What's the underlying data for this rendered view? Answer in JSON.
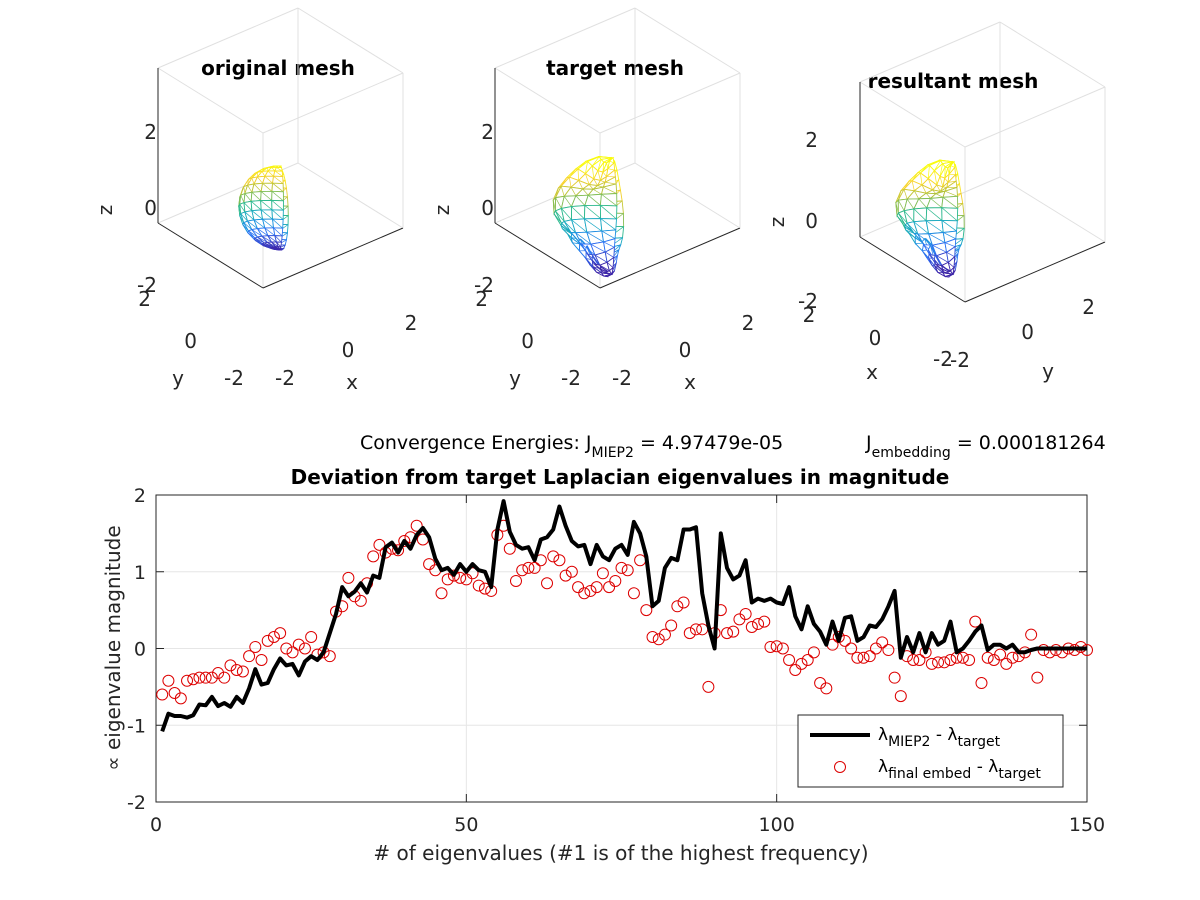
{
  "meshes": [
    {
      "id": "original",
      "title": "original mesh",
      "z_ticks": [
        "2",
        "0",
        "-2"
      ],
      "y_ticks": [
        "2",
        "0",
        "-2"
      ],
      "x_ticks": [
        "-2",
        "0",
        "2"
      ],
      "xlabel": "x",
      "ylabel": "y",
      "zlabel": "z"
    },
    {
      "id": "target",
      "title": "target mesh",
      "z_ticks": [
        "2",
        "0",
        "-2"
      ],
      "y_ticks": [
        "2",
        "0",
        "-2"
      ],
      "x_ticks": [
        "-2",
        "0",
        "2"
      ],
      "xlabel": "x",
      "ylabel": "y",
      "zlabel": "z"
    },
    {
      "id": "resultant",
      "title": "resultant mesh",
      "z_ticks": [
        "2",
        "0",
        "-2"
      ],
      "y_ticks": [
        "-2",
        "0",
        "2"
      ],
      "x_ticks": [
        "2",
        "0",
        "-2"
      ],
      "xlabel": "x",
      "ylabel": "y",
      "zlabel": "z"
    }
  ],
  "energies": {
    "prefix": "Convergence Energies: J",
    "miep_sub": "MIEP2",
    "miep_value": " = 4.97479e-05",
    "embed_J": "J",
    "embed_sub": "embedding",
    "embed_value": " = 0.000181264"
  },
  "colormap": [
    "#3e26a8",
    "#2f6ff5",
    "#14a3d6",
    "#2db98f",
    "#a8c03c",
    "#f9d22d",
    "#f9fb0e"
  ],
  "chart_data": {
    "type": "line",
    "title": "Deviation from target Laplacian eigenvalues in magnitude",
    "xlabel": "# of eigenvalues (#1 is of the highest frequency)",
    "ylabel": "∝ eigenvalue magnitude",
    "xlim": [
      0,
      150
    ],
    "ylim": [
      -2,
      2
    ],
    "xticks": [
      0,
      50,
      100,
      150
    ],
    "yticks": [
      -2,
      -1,
      0,
      1,
      2
    ],
    "grid": true,
    "legend_position": "bottom-right",
    "series": [
      {
        "name": "λMIEP2 - λtarget",
        "legend_main": "λ",
        "legend_sub1": "MIEP2",
        "legend_mid": " - λ",
        "legend_sub2": "target",
        "style": "line",
        "color": "#000000",
        "values": [
          -1.08,
          -0.85,
          -0.88,
          -0.88,
          -0.9,
          -0.87,
          -0.73,
          -0.74,
          -0.63,
          -0.75,
          -0.71,
          -0.76,
          -0.63,
          -0.71,
          -0.52,
          -0.27,
          -0.47,
          -0.45,
          -0.27,
          -0.13,
          -0.22,
          -0.2,
          -0.35,
          -0.17,
          -0.1,
          -0.15,
          -0.05,
          0.2,
          0.45,
          0.8,
          0.68,
          0.74,
          0.85,
          0.73,
          0.95,
          0.92,
          1.32,
          1.38,
          1.25,
          1.4,
          1.3,
          1.48,
          1.57,
          1.45,
          1.17,
          1.02,
          1.05,
          0.96,
          1.1,
          1.0,
          1.1,
          1.02,
          1.0,
          0.8,
          1.55,
          1.92,
          1.52,
          1.35,
          1.3,
          1.32,
          1.15,
          1.42,
          1.45,
          1.55,
          1.85,
          1.6,
          1.4,
          1.33,
          1.35,
          1.1,
          1.35,
          1.2,
          1.15,
          1.3,
          1.35,
          1.22,
          1.65,
          1.5,
          1.2,
          0.55,
          0.62,
          1.05,
          1.18,
          1.15,
          1.55,
          1.55,
          1.58,
          0.72,
          0.3,
          0.0,
          1.5,
          1.05,
          0.9,
          0.95,
          1.15,
          0.6,
          0.65,
          0.62,
          0.65,
          0.6,
          0.58,
          0.8,
          0.42,
          0.25,
          0.55,
          0.32,
          0.22,
          0.05,
          0.35,
          0.1,
          0.4,
          0.42,
          0.1,
          0.15,
          0.3,
          0.28,
          0.38,
          0.55,
          0.75,
          -0.12,
          0.15,
          -0.05,
          0.2,
          -0.05,
          0.2,
          0.05,
          0.1,
          0.35,
          -0.05,
          0.0,
          0.1,
          0.22,
          0.3,
          -0.02,
          0.05,
          0.05,
          0.0,
          0.05,
          -0.05,
          -0.05,
          -0.02,
          0.0,
          0.0,
          0.0,
          0.0,
          0.0,
          0.0,
          0.0,
          0.0,
          0.0
        ]
      },
      {
        "name": "λfinal embed - λtarget",
        "legend_main": "λ",
        "legend_sub1": "final embed",
        "legend_mid": " - λ",
        "legend_sub2": "target",
        "style": "markers",
        "color": "#dd0000",
        "values": [
          -0.6,
          -0.42,
          -0.58,
          -0.65,
          -0.42,
          -0.4,
          -0.38,
          -0.38,
          -0.38,
          -0.32,
          -0.38,
          -0.22,
          -0.28,
          -0.3,
          -0.1,
          0.02,
          -0.15,
          0.1,
          0.15,
          0.2,
          0.0,
          -0.05,
          0.05,
          0.0,
          0.15,
          -0.08,
          -0.05,
          -0.1,
          0.48,
          0.55,
          0.92,
          0.68,
          0.62,
          0.85,
          1.2,
          1.35,
          1.25,
          1.3,
          1.28,
          1.4,
          1.45,
          1.6,
          1.42,
          1.1,
          1.02,
          0.72,
          0.9,
          0.95,
          0.92,
          0.9,
          0.98,
          0.82,
          0.78,
          0.75,
          1.48,
          1.6,
          1.3,
          0.88,
          1.02,
          1.05,
          1.05,
          1.15,
          0.85,
          1.2,
          1.15,
          0.95,
          1.0,
          0.8,
          0.72,
          0.75,
          0.8,
          0.98,
          0.8,
          0.88,
          1.05,
          1.02,
          0.72,
          1.15,
          0.5,
          0.15,
          0.12,
          0.18,
          0.3,
          0.55,
          0.6,
          0.2,
          0.25,
          0.25,
          -0.5,
          0.2,
          0.5,
          0.2,
          0.22,
          0.38,
          0.45,
          0.28,
          0.32,
          0.35,
          0.02,
          0.03,
          0.0,
          -0.15,
          -0.28,
          -0.2,
          -0.15,
          -0.05,
          -0.45,
          -0.52,
          0.05,
          0.15,
          0.1,
          0.0,
          -0.12,
          -0.12,
          -0.1,
          0.0,
          0.08,
          -0.02,
          -0.38,
          -0.62,
          -0.1,
          -0.15,
          -0.15,
          -0.05,
          -0.2,
          -0.18,
          -0.18,
          -0.15,
          -0.12,
          -0.12,
          -0.15,
          0.35,
          -0.45,
          -0.12,
          -0.15,
          -0.08,
          -0.2,
          -0.12,
          -0.1,
          -0.05,
          0.18,
          -0.38,
          -0.02,
          -0.05,
          -0.02,
          -0.05,
          0.0,
          -0.02,
          0.02,
          -0.02
        ]
      }
    ]
  }
}
